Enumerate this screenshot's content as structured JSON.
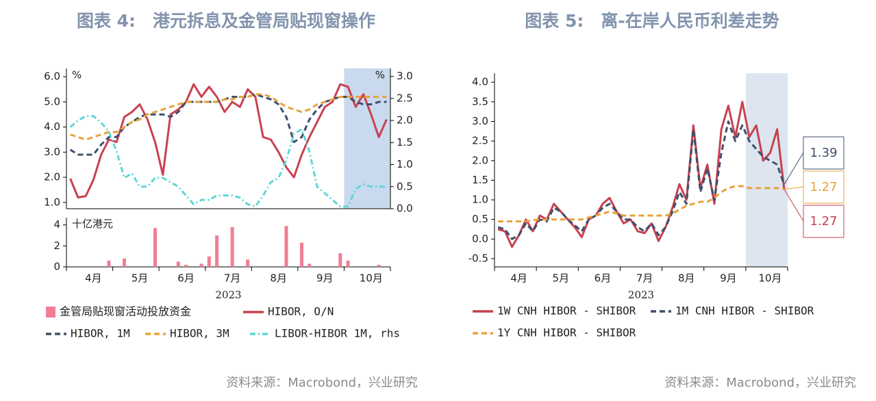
{
  "chart_data": [
    {
      "type": "line",
      "title": "图表 4:　港元拆息及金管局贴现窗操作",
      "source": "资料来源：Macrobond，兴业研究",
      "categories": [
        null,
        null,
        null,
        "4月",
        null,
        null,
        null,
        null,
        null,
        "5月",
        null,
        null,
        null,
        null,
        null,
        "6月",
        null,
        null,
        null,
        null,
        null,
        "7月",
        null,
        null,
        null,
        null,
        null,
        "8月",
        null,
        null,
        null,
        null,
        null,
        "9月",
        null,
        null,
        null,
        null,
        null,
        "10月",
        null,
        null
      ],
      "xlabel": "2023",
      "ylabel": "%",
      "y2label": "%",
      "ylim": [
        0.75,
        6.33
      ],
      "yticks": [
        {
          "value": 1,
          "label": "1.0"
        },
        {
          "value": 2,
          "label": "2.0"
        },
        {
          "value": 3,
          "label": "3.0"
        },
        {
          "value": 4,
          "label": "4.0"
        },
        {
          "value": 5,
          "label": "5.0"
        },
        {
          "value": 6,
          "label": "6.0"
        }
      ],
      "y2lim": [
        0,
        3.18
      ],
      "y2ticks": [
        {
          "value": 0,
          "label": "0.0"
        },
        0.5,
        {
          "value": 1,
          "label": "1.0"
        },
        1.5,
        {
          "value": 2,
          "label": "2.0"
        },
        2.5,
        {
          "value": 3,
          "label": "3.0"
        }
      ],
      "bars": {
        "name": "金管局贴现窗活动投放资金",
        "color": "#f07f93",
        "ylabel": "十亿港元",
        "ylim": [
          0,
          4.7
        ],
        "yticks": [
          0,
          2,
          4
        ],
        "values": [
          0,
          0,
          0,
          0,
          0,
          0.6,
          0,
          0.8,
          0,
          0,
          0,
          3.7,
          0,
          0,
          0.5,
          0.2,
          0,
          0.3,
          1.0,
          3.0,
          0,
          3.8,
          0,
          0.7,
          0,
          0,
          0,
          0,
          3.9,
          0,
          2.3,
          0.3,
          0,
          0,
          0,
          1.3,
          0.6,
          0,
          0,
          0,
          0.2,
          0
        ]
      },
      "series": [
        {
          "name": "HIBOR, O/N",
          "color": "#c8414f",
          "linestyle": "solid",
          "values": [
            1.95,
            1.2,
            1.25,
            1.9,
            2.9,
            3.5,
            3.4,
            4.4,
            4.6,
            4.9,
            4.3,
            3.4,
            2.1,
            4.5,
            4.7,
            5.0,
            5.7,
            5.2,
            5.6,
            5.2,
            4.6,
            5.0,
            4.8,
            5.5,
            5.2,
            3.6,
            3.5,
            3.0,
            2.4,
            2.0,
            2.9,
            3.6,
            4.2,
            4.8,
            5.0,
            5.7,
            5.6,
            4.8,
            5.3,
            4.5,
            3.6,
            4.3
          ]
        },
        {
          "name": "HIBOR, 1M",
          "color": "#3d4f6b",
          "linestyle": "dashed",
          "values": [
            3.1,
            2.9,
            2.9,
            2.9,
            3.3,
            3.6,
            3.6,
            4.0,
            4.2,
            4.4,
            4.5,
            4.5,
            4.5,
            4.4,
            4.6,
            5.0,
            5.0,
            5.0,
            5.0,
            5.0,
            5.1,
            5.2,
            5.2,
            5.2,
            5.3,
            5.2,
            5.1,
            4.9,
            4.4,
            3.4,
            3.6,
            4.3,
            4.7,
            5.0,
            5.1,
            5.2,
            5.2,
            5.0,
            4.9,
            4.9,
            5.0,
            5.0
          ]
        },
        {
          "name": "HIBOR, 3M",
          "color": "#e8a23a",
          "linestyle": "dashed",
          "values": [
            3.7,
            3.6,
            3.5,
            3.6,
            3.7,
            3.8,
            3.8,
            4.0,
            4.2,
            4.3,
            4.5,
            4.6,
            4.7,
            4.8,
            4.9,
            5.0,
            5.0,
            5.0,
            5.0,
            5.0,
            5.1,
            5.1,
            5.2,
            5.2,
            5.3,
            5.3,
            5.2,
            5.0,
            4.8,
            4.7,
            4.6,
            4.7,
            4.9,
            5.0,
            5.1,
            5.2,
            5.2,
            5.2,
            5.2,
            5.2,
            5.2,
            5.2
          ]
        },
        {
          "name": "LIBOR-HIBOR 1M, rhs",
          "color": "#5fd6d6",
          "linestyle": "dashdot",
          "axis": "y2",
          "values": [
            1.85,
            2.0,
            2.1,
            2.1,
            1.95,
            1.75,
            1.3,
            0.7,
            0.8,
            0.5,
            0.5,
            0.7,
            0.7,
            0.6,
            0.5,
            0.3,
            0.1,
            0.2,
            0.2,
            0.3,
            0.3,
            0.3,
            0.25,
            0.1,
            0.05,
            0.3,
            0.6,
            0.7,
            1.1,
            1.7,
            1.8,
            1.3,
            0.5,
            0.35,
            0.2,
            0.05,
            0.05,
            0.45,
            0.55,
            0.5,
            0.5,
            0.5
          ]
        }
      ]
    },
    {
      "type": "line",
      "title": "图表 5:　离-在岸人民币利差走势",
      "source": "资料来源：Macrobond，兴业研究",
      "categories": [
        null,
        null,
        null,
        "4月",
        null,
        null,
        null,
        null,
        null,
        "5月",
        null,
        null,
        null,
        null,
        null,
        "6月",
        null,
        null,
        null,
        null,
        null,
        "7月",
        null,
        null,
        null,
        null,
        null,
        "8月",
        null,
        null,
        null,
        null,
        null,
        "9月",
        null,
        null,
        null,
        null,
        null,
        "10月",
        null,
        null
      ],
      "xlabel": "2023",
      "ylim": [
        -0.71,
        4.23
      ],
      "yticks": [
        -0.5,
        {
          "value": 0,
          "label": "0.0"
        },
        0.5,
        {
          "value": 1,
          "label": "1.0"
        },
        1.5,
        {
          "value": 2,
          "label": "2.0"
        },
        2.5,
        {
          "value": 3,
          "label": "3.0"
        },
        3.5,
        {
          "value": 4,
          "label": "4.0"
        }
      ],
      "end_labels": true,
      "series": [
        {
          "name": "1W CNH HIBOR - SHIBOR",
          "color": "#c8414f",
          "linestyle": "solid",
          "values": [
            0.25,
            0.2,
            -0.2,
            0.1,
            0.5,
            0.2,
            0.6,
            0.5,
            0.9,
            0.7,
            0.5,
            0.3,
            0.05,
            0.5,
            0.6,
            0.9,
            1.05,
            0.7,
            0.4,
            0.5,
            0.2,
            0.15,
            0.4,
            -0.05,
            0.3,
            0.8,
            1.4,
            1.0,
            2.9,
            1.3,
            1.9,
            0.9,
            2.8,
            3.4,
            2.6,
            3.5,
            2.6,
            2.9,
            2.0,
            2.2,
            2.8,
            1.27
          ]
        },
        {
          "name": "1M CNH HIBOR - SHIBOR",
          "color": "#3d4f6b",
          "linestyle": "dashed",
          "values": [
            0.3,
            0.25,
            0.0,
            0.1,
            0.4,
            0.2,
            0.5,
            0.45,
            0.8,
            0.7,
            0.5,
            0.35,
            0.2,
            0.5,
            0.6,
            0.8,
            0.9,
            0.7,
            0.5,
            0.5,
            0.3,
            0.2,
            0.4,
            0.1,
            0.3,
            0.7,
            1.2,
            0.9,
            2.8,
            1.2,
            1.8,
            1.0,
            2.2,
            3.0,
            2.5,
            2.9,
            2.5,
            2.3,
            2.1,
            2.0,
            1.9,
            1.39
          ]
        },
        {
          "name": "1Y CNH HIBOR - SHIBOR",
          "color": "#e8a23a",
          "linestyle": "dashed",
          "values": [
            0.45,
            0.45,
            0.45,
            0.45,
            0.45,
            0.48,
            0.5,
            0.5,
            0.5,
            0.5,
            0.5,
            0.5,
            0.5,
            0.55,
            0.6,
            0.65,
            0.7,
            0.65,
            0.6,
            0.6,
            0.6,
            0.6,
            0.6,
            0.6,
            0.6,
            0.65,
            0.75,
            0.85,
            0.9,
            0.95,
            0.95,
            1.05,
            1.2,
            1.3,
            1.35,
            1.35,
            1.3,
            1.3,
            1.3,
            1.3,
            1.3,
            1.27
          ]
        }
      ]
    }
  ]
}
